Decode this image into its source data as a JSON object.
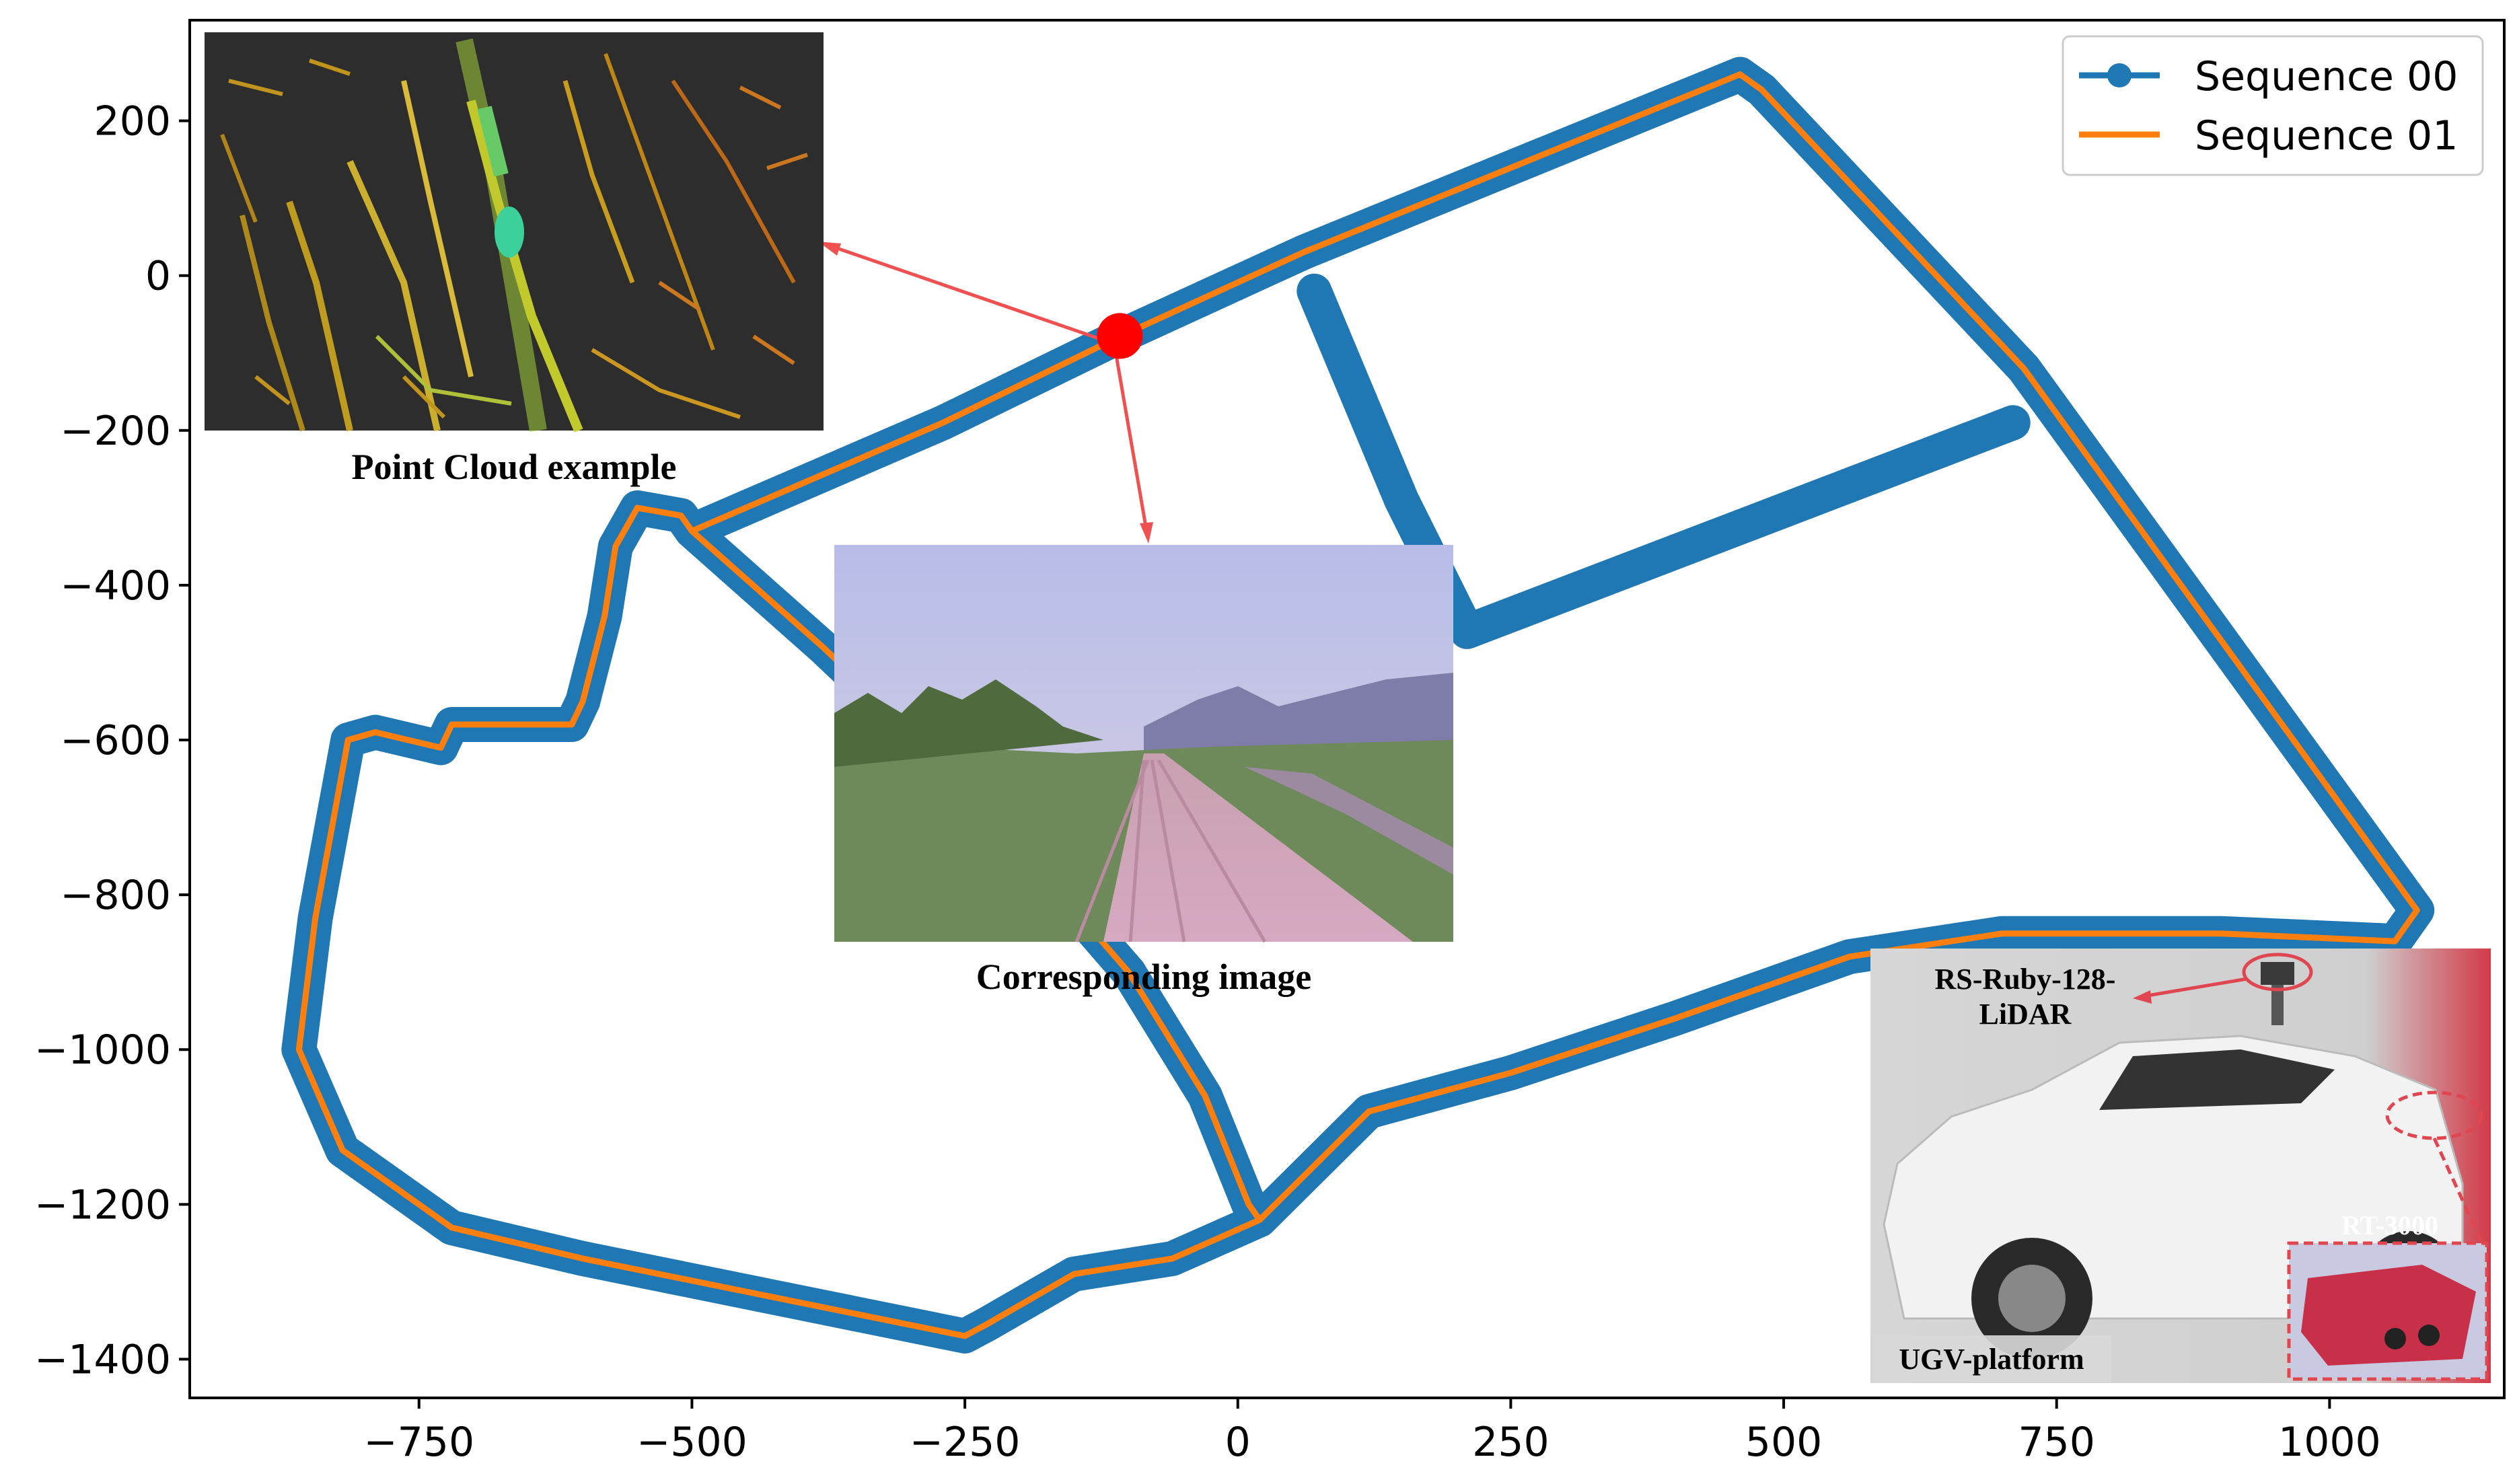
{
  "chart_data": {
    "type": "line",
    "title": "",
    "xlabel": "",
    "ylabel": "",
    "xlim": [
      -960,
      1160
    ],
    "ylim": [
      -1450,
      330
    ],
    "xticks": [
      -750,
      -500,
      -250,
      0,
      250,
      500,
      750,
      1000
    ],
    "yticks": [
      200,
      0,
      -200,
      -400,
      -600,
      -800,
      -1000,
      -1200,
      -1400
    ],
    "xtick_labels": [
      "−750",
      "−500",
      "−250",
      "0",
      "250",
      "500",
      "750",
      "1000"
    ],
    "ytick_labels": [
      "200",
      "0",
      "−200",
      "−400",
      "−600",
      "−800",
      "−1000",
      "−1200",
      "−1400"
    ],
    "grid": false,
    "legend_position": "top-right",
    "series": [
      {
        "name": "Sequence 00",
        "color": "#1f77b4",
        "marker": "circle",
        "segments": [
          [
            [
              -500,
              -330
            ],
            [
              -270,
              -190
            ],
            [
              -110,
              -80
            ],
            [
              60,
              30
            ],
            [
              460,
              260
            ],
            [
              480,
              240
            ],
            [
              720,
              -120
            ],
            [
              1080,
              -820
            ],
            [
              1060,
              -860
            ],
            [
              900,
              -850
            ],
            [
              700,
              -850
            ],
            [
              560,
              -880
            ],
            [
              400,
              -960
            ],
            [
              250,
              -1030
            ],
            [
              120,
              -1080
            ],
            [
              20,
              -1220
            ],
            [
              -60,
              -1270
            ],
            [
              -150,
              -1290
            ],
            [
              -230,
              -1355
            ],
            [
              -250,
              -1370
            ],
            [
              -600,
              -1270
            ],
            [
              -720,
              -1230
            ],
            [
              -820,
              -1130
            ],
            [
              -860,
              -1000
            ],
            [
              -845,
              -830
            ],
            [
              -815,
              -600
            ],
            [
              -790,
              -590
            ],
            [
              -730,
              -610
            ],
            [
              -720,
              -580
            ],
            [
              -610,
              -580
            ],
            [
              -600,
              -550
            ],
            [
              -580,
              -440
            ],
            [
              -570,
              -350
            ],
            [
              -550,
              -300
            ],
            [
              -510,
              -310
            ],
            [
              -500,
              -330
            ],
            [
              -380,
              -480
            ],
            [
              -260,
              -640
            ],
            [
              -100,
              -900
            ],
            [
              -30,
              -1060
            ],
            [
              10,
              -1200
            ],
            [
              20,
              -1220
            ]
          ],
          [
            [
              70,
              -20
            ],
            [
              150,
              -290
            ],
            [
              210,
              -460
            ],
            [
              710,
              -190
            ]
          ]
        ]
      },
      {
        "name": "Sequence 01",
        "color": "#ff7f0e",
        "marker": "none",
        "segments": [
          [
            [
              -500,
              -330
            ],
            [
              -270,
              -190
            ],
            [
              -110,
              -80
            ],
            [
              60,
              30
            ],
            [
              460,
              260
            ],
            [
              480,
              240
            ],
            [
              720,
              -120
            ],
            [
              1080,
              -820
            ],
            [
              1060,
              -860
            ],
            [
              900,
              -850
            ],
            [
              700,
              -850
            ],
            [
              560,
              -880
            ],
            [
              400,
              -960
            ],
            [
              250,
              -1030
            ],
            [
              120,
              -1080
            ],
            [
              20,
              -1220
            ],
            [
              -60,
              -1270
            ],
            [
              -150,
              -1290
            ],
            [
              -230,
              -1355
            ],
            [
              -250,
              -1370
            ],
            [
              -600,
              -1270
            ],
            [
              -720,
              -1230
            ],
            [
              -820,
              -1130
            ],
            [
              -860,
              -1000
            ],
            [
              -845,
              -830
            ],
            [
              -815,
              -600
            ],
            [
              -790,
              -590
            ],
            [
              -730,
              -610
            ],
            [
              -720,
              -580
            ],
            [
              -610,
              -580
            ],
            [
              -600,
              -550
            ],
            [
              -580,
              -440
            ],
            [
              -570,
              -350
            ],
            [
              -550,
              -300
            ],
            [
              -510,
              -310
            ],
            [
              -500,
              -330
            ],
            [
              -380,
              -480
            ],
            [
              -260,
              -640
            ],
            [
              -100,
              -900
            ],
            [
              -30,
              -1060
            ],
            [
              10,
              -1200
            ],
            [
              20,
              -1220
            ]
          ]
        ]
      }
    ],
    "highlight_point": {
      "x": -108,
      "y": -78,
      "color": "#ff0000"
    },
    "annotations": {
      "point_cloud_caption": "Point Cloud example",
      "image_caption": "Corresponding image",
      "lidar_label_line1": "RS-Ruby-128-",
      "lidar_label_line2": "LiDAR",
      "ins_label": "RT-3000",
      "platform_label": "UGV-platform"
    }
  }
}
